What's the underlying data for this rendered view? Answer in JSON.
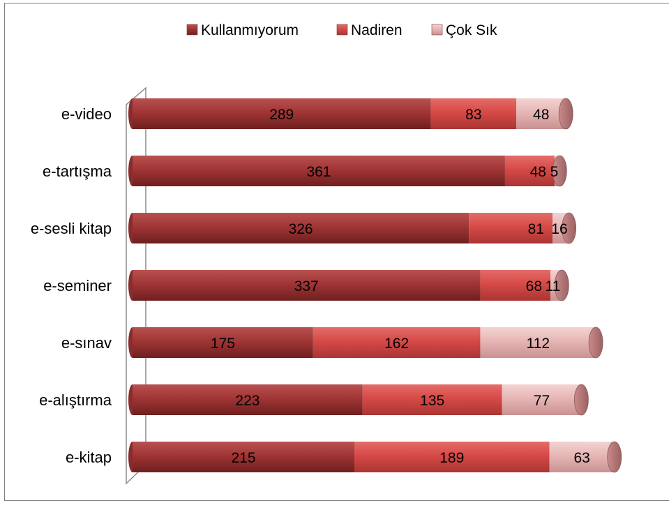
{
  "chart_data": {
    "type": "bar",
    "orientation": "horizontal",
    "stacked": true,
    "style": "3d-cylinder",
    "categories": [
      "e-video",
      "e-tartışma",
      "e-sesli kitap",
      "e-seminer",
      "e-sınav",
      "e-alıştırma",
      "e-kitap"
    ],
    "series": [
      {
        "name": "Kullanmıyorum",
        "values": [
          289,
          361,
          326,
          337,
          175,
          223,
          215
        ],
        "color": "#a63a3a"
      },
      {
        "name": "Nadiren",
        "values": [
          83,
          48,
          81,
          68,
          162,
          135,
          189
        ],
        "color": "#d95350"
      },
      {
        "name": "Çok Sık",
        "values": [
          48,
          5,
          16,
          11,
          112,
          77,
          63
        ],
        "color": "#e8b9b8"
      }
    ],
    "xlim": [
      0,
      460
    ],
    "legend_position": "top",
    "grid": false
  }
}
